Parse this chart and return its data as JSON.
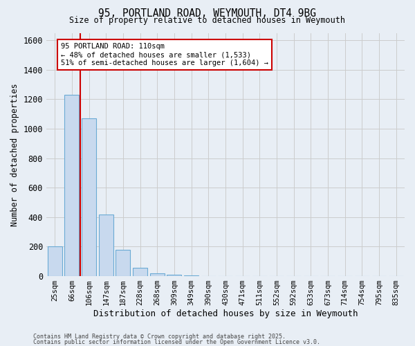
{
  "title_line1": "95, PORTLAND ROAD, WEYMOUTH, DT4 9BG",
  "title_line2": "Size of property relative to detached houses in Weymouth",
  "xlabel": "Distribution of detached houses by size in Weymouth",
  "ylabel": "Number of detached properties",
  "categories": [
    "25sqm",
    "66sqm",
    "106sqm",
    "147sqm",
    "187sqm",
    "228sqm",
    "268sqm",
    "309sqm",
    "349sqm",
    "390sqm",
    "430sqm",
    "471sqm",
    "511sqm",
    "552sqm",
    "592sqm",
    "633sqm",
    "673sqm",
    "714sqm",
    "754sqm",
    "795sqm",
    "835sqm"
  ],
  "values": [
    200,
    1230,
    1070,
    420,
    180,
    55,
    20,
    10,
    5,
    2,
    0,
    0,
    0,
    0,
    0,
    0,
    0,
    0,
    0,
    0,
    0
  ],
  "bar_color": "#c8d9ee",
  "bar_edge_color": "#6aaad4",
  "grid_color": "#cccccc",
  "background_color": "#e8eef5",
  "vline_color": "#cc0000",
  "vline_x": 1.5,
  "annotation_text": "95 PORTLAND ROAD: 110sqm\n← 48% of detached houses are smaller (1,533)\n51% of semi-detached houses are larger (1,604) →",
  "annotation_box_color": "#ffffff",
  "annotation_box_edge": "#cc0000",
  "ylim": [
    0,
    1650
  ],
  "yticks": [
    0,
    200,
    400,
    600,
    800,
    1000,
    1200,
    1400,
    1600
  ],
  "footer_line1": "Contains HM Land Registry data © Crown copyright and database right 2025.",
  "footer_line2": "Contains public sector information licensed under the Open Government Licence v3.0."
}
